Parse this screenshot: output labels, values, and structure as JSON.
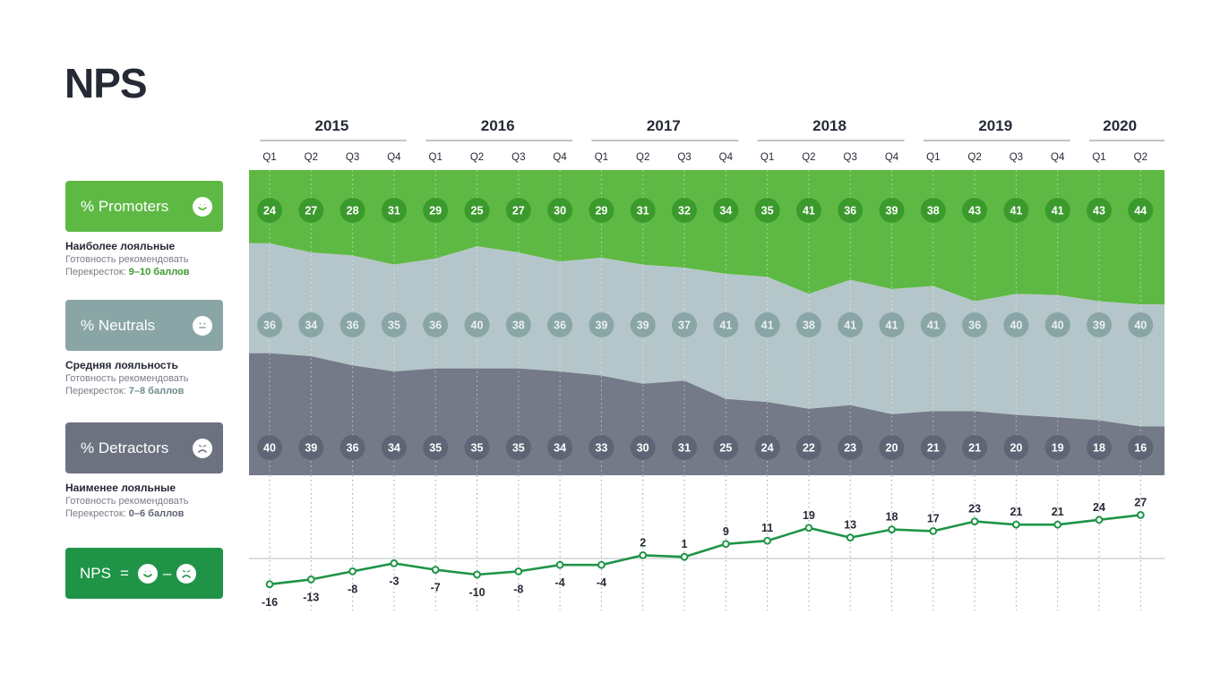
{
  "page": {
    "title": "NPS"
  },
  "legend": {
    "promoters": {
      "label": "% Promoters",
      "heading": "Наиболее лояльные",
      "line1": "Готовность рекомендовать",
      "line2_prefix": "Перекресток: ",
      "line2_value": "9–10 баллов",
      "color": "#5eb944"
    },
    "neutrals": {
      "label": "% Neutrals",
      "heading": "Средняя лояльность",
      "line1": "Готовность рекомендовать",
      "line2_prefix": "Перекресток: ",
      "line2_value": "7–8 баллов",
      "color": "#8aa5a6"
    },
    "detractors": {
      "label": "% Detractors",
      "heading": "Наименее лояльные",
      "line1": "Готовность рекомендовать",
      "line2_prefix": "Перекресток: ",
      "line2_value": "0–6 баллов",
      "color": "#6d7280"
    },
    "nps": {
      "label": "NPS",
      "equals": "=",
      "minus": "–",
      "color": "#1f9447"
    }
  },
  "chart_data": {
    "type": "area",
    "stacked": true,
    "years": [
      {
        "label": "2015",
        "quarters": 4
      },
      {
        "label": "2016",
        "quarters": 4
      },
      {
        "label": "2017",
        "quarters": 4
      },
      {
        "label": "2018",
        "quarters": 4
      },
      {
        "label": "2019",
        "quarters": 4
      },
      {
        "label": "2020",
        "quarters": 2
      }
    ],
    "categories": [
      "Q1",
      "Q2",
      "Q3",
      "Q4",
      "Q1",
      "Q2",
      "Q3",
      "Q4",
      "Q1",
      "Q2",
      "Q3",
      "Q4",
      "Q1",
      "Q2",
      "Q3",
      "Q4",
      "Q1",
      "Q2",
      "Q3",
      "Q4",
      "Q1",
      "Q2"
    ],
    "series": [
      {
        "name": "% Promoters",
        "color": "#5eb944",
        "label_color": "#3b9a2c",
        "values": [
          24,
          27,
          28,
          31,
          29,
          25,
          27,
          30,
          29,
          31,
          32,
          34,
          35,
          41,
          36,
          39,
          38,
          43,
          41,
          41,
          43,
          44
        ]
      },
      {
        "name": "% Neutrals",
        "color": "#b5c6ca",
        "label_color": "#8aa5a6",
        "values": [
          36,
          34,
          36,
          35,
          36,
          40,
          38,
          36,
          39,
          39,
          37,
          41,
          41,
          38,
          41,
          41,
          41,
          36,
          40,
          40,
          39,
          40
        ]
      },
      {
        "name": "% Detractors",
        "color": "#747a87",
        "label_color": "#5f6574",
        "values": [
          40,
          39,
          36,
          34,
          35,
          35,
          35,
          34,
          33,
          30,
          31,
          25,
          24,
          22,
          23,
          20,
          21,
          21,
          20,
          19,
          18,
          16
        ]
      }
    ],
    "nps": {
      "name": "NPS",
      "color": "#1f9447",
      "values": [
        -16,
        -13,
        -8,
        -3,
        -7,
        -10,
        -8,
        -4,
        -4,
        2,
        1,
        9,
        11,
        19,
        13,
        18,
        17,
        23,
        21,
        21,
        24,
        27
      ]
    }
  }
}
